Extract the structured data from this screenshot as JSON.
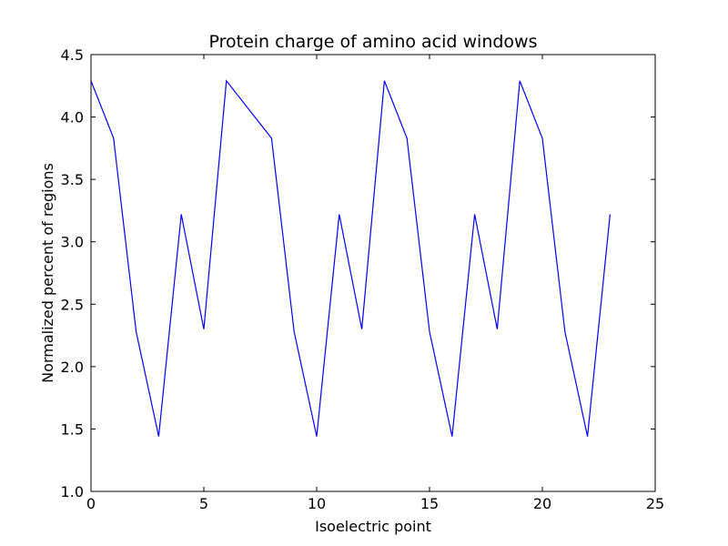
{
  "chart_data": {
    "type": "line",
    "title": "Protein charge of amino acid windows",
    "xlabel": "Isoelectric point",
    "ylabel": "Normalized percent of regions",
    "xlim": [
      0,
      25
    ],
    "ylim": [
      1.0,
      4.5
    ],
    "xticks": [
      0,
      5,
      10,
      15,
      20,
      25
    ],
    "xtick_labels": [
      "0",
      "5",
      "10",
      "15",
      "20",
      "25"
    ],
    "yticks": [
      1.0,
      1.5,
      2.0,
      2.5,
      3.0,
      3.5,
      4.0,
      4.5
    ],
    "ytick_labels": [
      "1.0",
      "1.5",
      "2.0",
      "2.5",
      "3.0",
      "3.5",
      "4.0",
      "4.5"
    ],
    "grid": false,
    "series": [
      {
        "color": "#0000ff",
        "x": [
          0,
          1,
          2,
          3,
          4,
          5,
          6,
          8,
          9,
          10,
          11,
          12,
          13,
          14,
          15,
          16,
          17,
          18,
          19,
          20,
          21,
          22,
          23
        ],
        "y": [
          4.29,
          3.83,
          2.28,
          1.44,
          3.22,
          2.3,
          4.29,
          3.83,
          2.28,
          1.44,
          3.22,
          2.3,
          4.29,
          3.83,
          2.28,
          1.44,
          3.22,
          2.3,
          4.29,
          3.83,
          2.28,
          1.44,
          3.22
        ]
      }
    ]
  }
}
